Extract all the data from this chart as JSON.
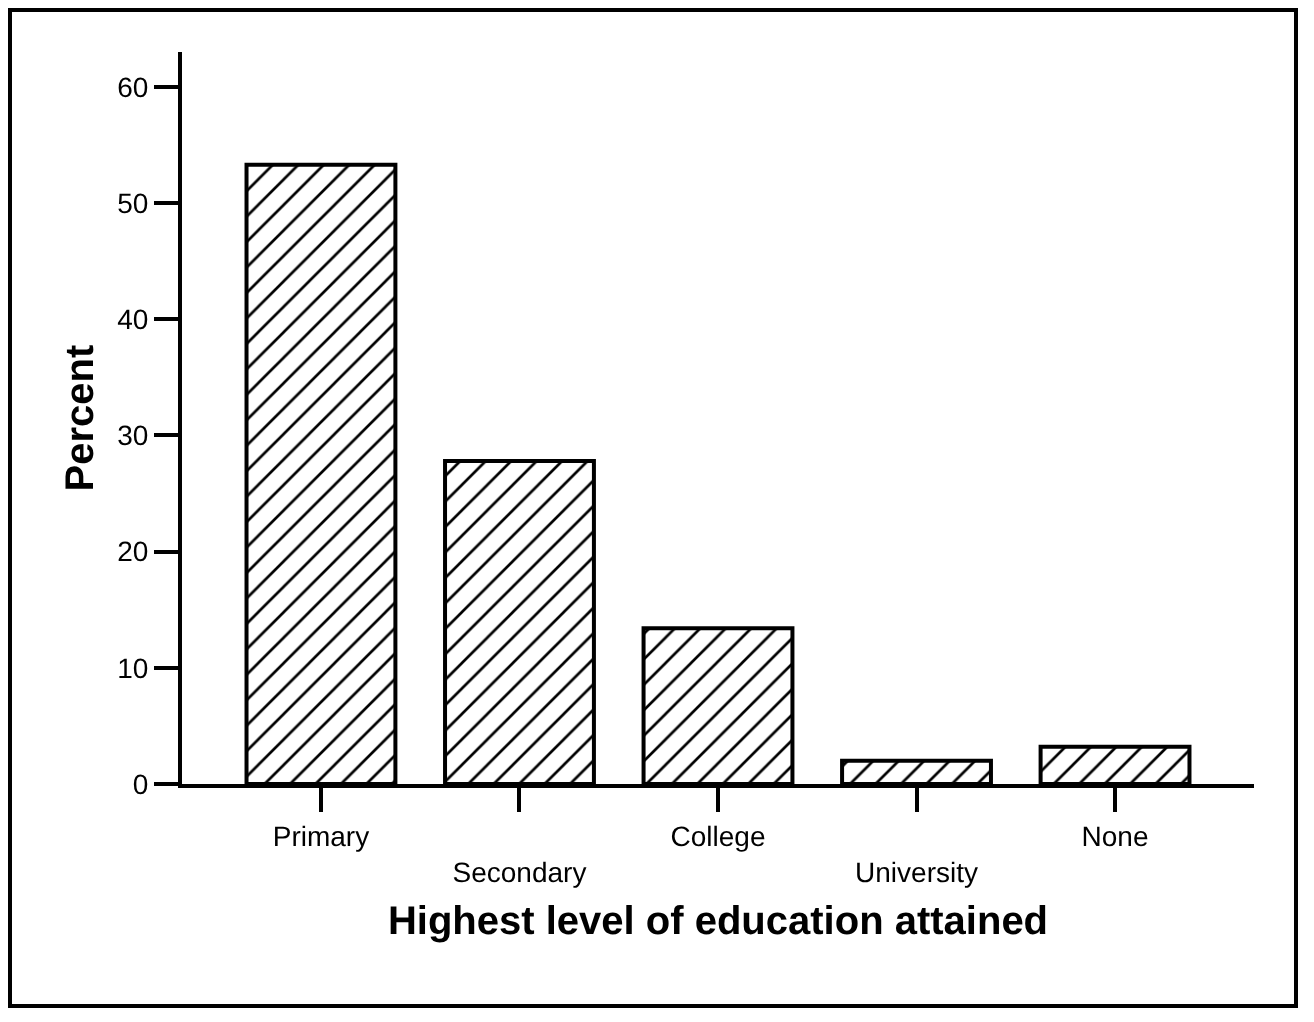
{
  "chart_data": {
    "type": "bar",
    "xlabel": "Highest level of education attained",
    "ylabel": "Percent",
    "categories": [
      "Primary",
      "Secondary",
      "College",
      "University",
      "None"
    ],
    "values": [
      53.3,
      27.8,
      13.4,
      2.0,
      3.2
    ],
    "color": "#000000",
    "ylim": [
      0,
      63
    ],
    "yticks": [
      0,
      10,
      20,
      30,
      40,
      50,
      60
    ],
    "grid": false
  }
}
